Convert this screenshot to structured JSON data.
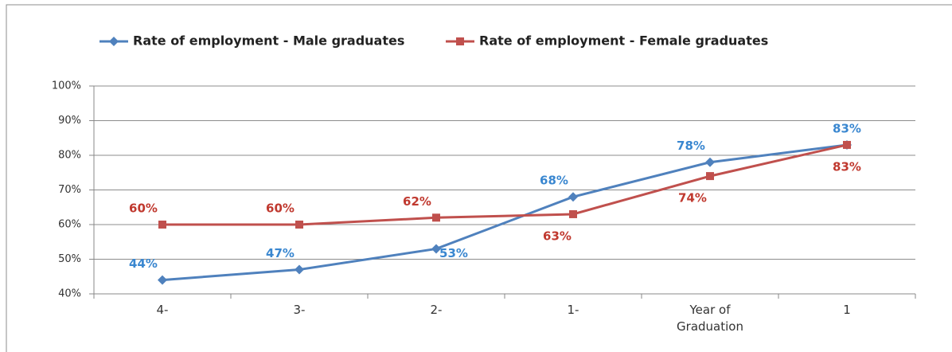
{
  "chart_data": {
    "type": "line",
    "categories": [
      "4-",
      "3-",
      "2-",
      "1-",
      "Year of Graduation",
      "1"
    ],
    "series": [
      {
        "name": "Rate of employment - Male graduates",
        "color": "#4f81bd",
        "label_color": "#3a87d0",
        "values": [
          44,
          47,
          53,
          68,
          78,
          83
        ],
        "value_labels": [
          "44%",
          "47%",
          "53%",
          "68%",
          "78%",
          "83%"
        ]
      },
      {
        "name": "Rate of employment - Female graduates",
        "color": "#c0504d",
        "label_color": "#c0392f",
        "values": [
          60,
          60,
          62,
          63,
          74,
          83
        ],
        "value_labels": [
          "60%",
          "60%",
          "62%",
          "63%",
          "74%",
          "83%"
        ]
      }
    ],
    "ylim": [
      40,
      100
    ],
    "yticks": [
      {
        "value": 40,
        "label": "40%"
      },
      {
        "value": 50,
        "label": "50%"
      },
      {
        "value": 60,
        "label": "60%"
      },
      {
        "value": 70,
        "label": "70%"
      },
      {
        "value": 80,
        "label": "80%"
      },
      {
        "value": 90,
        "label": "90%"
      },
      {
        "value": 100,
        "label": "100%"
      }
    ],
    "grid": true,
    "legend": "top"
  }
}
